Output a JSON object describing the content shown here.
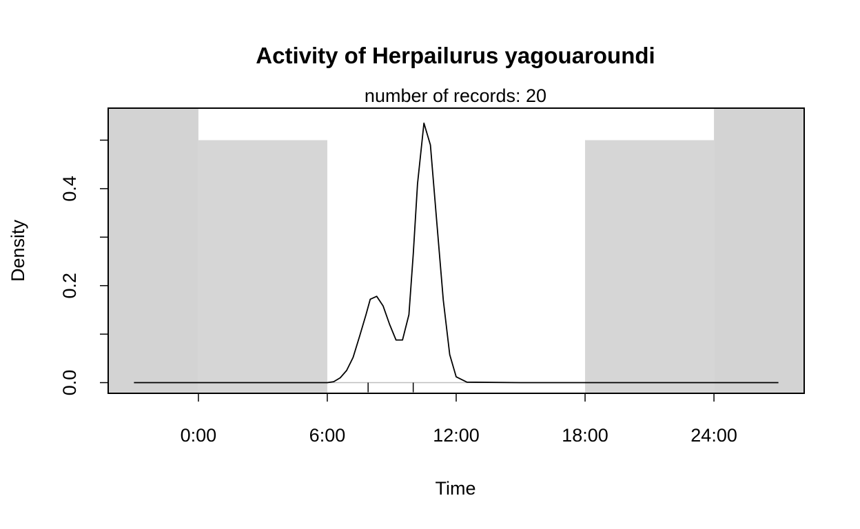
{
  "chart_data": {
    "type": "line",
    "title": "Activity of Herpailurus yagouaroundi",
    "subtitle": "number of records: 20",
    "xlabel": "Time",
    "ylabel": "Density",
    "xlim": [
      -4.2,
      28.2
    ],
    "ylim": [
      -0.022,
      0.566
    ],
    "x_ticks": [
      0,
      6,
      12,
      18,
      24
    ],
    "x_tick_labels": [
      "0:00",
      "6:00",
      "12:00",
      "18:00",
      "24:00"
    ],
    "y_ticks": [
      0.0,
      0.1,
      0.2,
      0.3,
      0.4,
      0.5
    ],
    "y_tick_labels": [
      "0.0",
      "",
      "0.2",
      "",
      "0.4",
      ""
    ],
    "night_shading": [
      {
        "x0": -4.2,
        "x1": 0,
        "y_top": 0.566,
        "color": "#d3d3d3"
      },
      {
        "x0": 0,
        "x1": 6,
        "y_top": 0.5,
        "color": "#d6d6d6"
      },
      {
        "x0": 18,
        "x1": 24,
        "y_top": 0.5,
        "color": "#d6d6d6"
      },
      {
        "x0": 24,
        "x1": 28.2,
        "y_top": 0.566,
        "color": "#d3d3d3"
      }
    ],
    "rug_x": [
      7.9,
      10.0
    ],
    "series": [
      {
        "color": "#000000",
        "x": [
          -3,
          0,
          4,
          6,
          6.3,
          6.6,
          6.9,
          7.2,
          7.5,
          7.8,
          8.0,
          8.3,
          8.6,
          8.9,
          9.2,
          9.5,
          9.8,
          10.0,
          10.2,
          10.5,
          10.8,
          11.1,
          11.4,
          11.7,
          12.0,
          12.5,
          15,
          18,
          24,
          27
        ],
        "y": [
          0,
          0,
          0,
          0,
          0.002,
          0.01,
          0.025,
          0.052,
          0.095,
          0.14,
          0.172,
          0.178,
          0.158,
          0.12,
          0.088,
          0.088,
          0.14,
          0.265,
          0.41,
          0.535,
          0.49,
          0.33,
          0.17,
          0.058,
          0.012,
          0.001,
          0,
          0,
          0,
          0
        ]
      }
    ]
  }
}
